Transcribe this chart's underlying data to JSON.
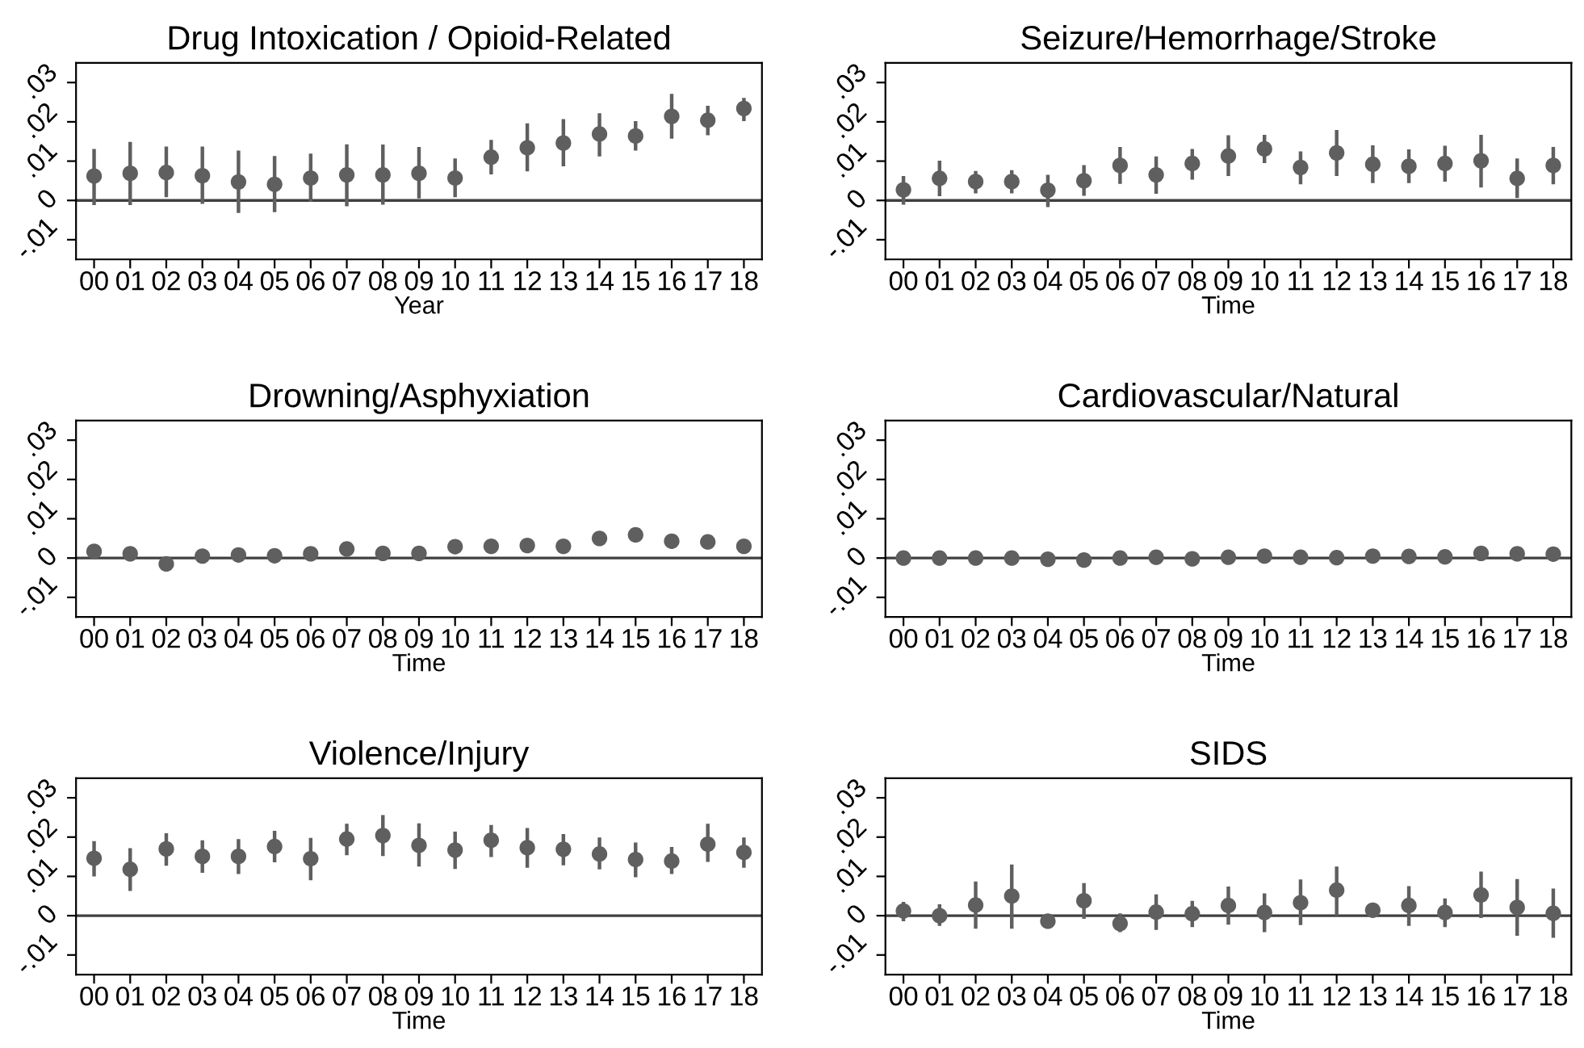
{
  "chart_data": [
    {
      "type": "scatter",
      "title": "Drug Intoxication / Opioid-Related",
      "xlabel": "Year",
      "categories": [
        "00",
        "01",
        "02",
        "03",
        "04",
        "05",
        "06",
        "07",
        "08",
        "09",
        "10",
        "11",
        "12",
        "13",
        "14",
        "15",
        "16",
        "17",
        "18"
      ],
      "series": [
        {
          "color": "#5f5f5f",
          "values": [
            0.0062,
            0.0069,
            0.0071,
            0.0063,
            0.0047,
            0.0041,
            0.0057,
            0.0065,
            0.0065,
            0.0069,
            0.0057,
            0.011,
            0.0134,
            0.0146,
            0.0169,
            0.0164,
            0.0214,
            0.0204,
            0.0234
          ],
          "errors": [
            [
              -0.0012,
              0.0131
            ],
            [
              -0.0012,
              0.0149
            ],
            [
              0.0008,
              0.0137
            ],
            [
              -0.0009,
              0.0137
            ],
            [
              -0.0032,
              0.0127
            ],
            [
              -0.003,
              0.0113
            ],
            [
              -0.0003,
              0.0119
            ],
            [
              -0.0015,
              0.0143
            ],
            [
              -0.0011,
              0.0142
            ],
            [
              0.0005,
              0.0136
            ],
            [
              0.0008,
              0.0107
            ],
            [
              0.0066,
              0.0154
            ],
            [
              0.0074,
              0.0196
            ],
            [
              0.0087,
              0.0207
            ],
            [
              0.0112,
              0.0222
            ],
            [
              0.0127,
              0.0202
            ],
            [
              0.0157,
              0.0271
            ],
            [
              0.0166,
              0.0241
            ],
            [
              0.0202,
              0.0261
            ]
          ]
        }
      ],
      "ylim": [
        -0.015,
        0.035
      ],
      "yticks": [
        {
          "value": -0.01,
          "label": "-.01"
        },
        0,
        {
          "value": 0.01,
          "label": ".01"
        },
        {
          "value": 0.02,
          "label": ".02"
        },
        {
          "value": 0.03,
          "label": ".03"
        }
      ],
      "ref_lines": [
        {
          "axis": "y",
          "value": 0,
          "color": "#404040"
        }
      ],
      "marker": "circle",
      "grid": false,
      "legend": false
    },
    {
      "type": "scatter",
      "title": "Seizure/Hemorrhage/Stroke",
      "xlabel": "Time",
      "categories": [
        "00",
        "01",
        "02",
        "03",
        "04",
        "05",
        "06",
        "07",
        "08",
        "09",
        "10",
        "11",
        "12",
        "13",
        "14",
        "15",
        "16",
        "17",
        "18"
      ],
      "series": [
        {
          "color": "#5f5f5f",
          "values": [
            0.0027,
            0.0056,
            0.0048,
            0.0048,
            0.0026,
            0.005,
            0.0089,
            0.0065,
            0.0094,
            0.0113,
            0.0131,
            0.0084,
            0.0121,
            0.0092,
            0.0087,
            0.0094,
            0.0101,
            0.0056,
            0.0089
          ],
          "errors": [
            [
              -0.0011,
              0.0062
            ],
            [
              0.0011,
              0.0101
            ],
            [
              0.0018,
              0.0075
            ],
            [
              0.0018,
              0.0077
            ],
            [
              -0.0017,
              0.0065
            ],
            [
              0.0012,
              0.009
            ],
            [
              0.0042,
              0.0136
            ],
            [
              0.0017,
              0.0112
            ],
            [
              0.0053,
              0.0131
            ],
            [
              0.0062,
              0.0166
            ],
            [
              0.0095,
              0.0167
            ],
            [
              0.0041,
              0.0125
            ],
            [
              0.0062,
              0.0179
            ],
            [
              0.0044,
              0.014
            ],
            [
              0.0044,
              0.013
            ],
            [
              0.0048,
              0.0139
            ],
            [
              0.0033,
              0.0167
            ],
            [
              0.0006,
              0.0107
            ],
            [
              0.0041,
              0.0136
            ]
          ]
        }
      ],
      "ylim": [
        -0.015,
        0.035
      ],
      "yticks": [
        {
          "value": -0.01,
          "label": "-.01"
        },
        0,
        {
          "value": 0.01,
          "label": ".01"
        },
        {
          "value": 0.02,
          "label": ".02"
        },
        {
          "value": 0.03,
          "label": ".03"
        }
      ],
      "ref_lines": [
        {
          "axis": "y",
          "value": 0,
          "color": "#404040"
        }
      ],
      "marker": "circle",
      "grid": false,
      "legend": false
    },
    {
      "type": "scatter",
      "title": "Drowning/Asphyxiation",
      "xlabel": "Time",
      "categories": [
        "00",
        "01",
        "02",
        "03",
        "04",
        "05",
        "06",
        "07",
        "08",
        "09",
        "10",
        "11",
        "12",
        "13",
        "14",
        "15",
        "16",
        "17",
        "18"
      ],
      "series": [
        {
          "color": "#5f5f5f",
          "values": [
            0.0017,
            0.0011,
            -0.0015,
            0.0005,
            0.0008,
            0.0006,
            0.0011,
            0.0023,
            0.0012,
            0.0012,
            0.0029,
            0.003,
            0.0032,
            0.003,
            0.005,
            0.0059,
            0.0043,
            0.0041,
            0.003
          ],
          "errors": [
            0.0008,
            0.0008,
            0.0008,
            0.0008,
            0.0008,
            0.0008,
            0.0008,
            0.0008,
            0.0008,
            0.0015,
            0.0008,
            0.0008,
            0.0015,
            0.001,
            0.0015,
            0.001,
            0.0012,
            0.0015,
            0.0012
          ]
        }
      ],
      "ylim": [
        -0.015,
        0.035
      ],
      "yticks": [
        {
          "value": -0.01,
          "label": "-.01"
        },
        0,
        {
          "value": 0.01,
          "label": ".01"
        },
        {
          "value": 0.02,
          "label": ".02"
        },
        {
          "value": 0.03,
          "label": ".03"
        }
      ],
      "ref_lines": [
        {
          "axis": "y",
          "value": 0,
          "color": "#404040"
        }
      ],
      "marker": "circle",
      "grid": false,
      "legend": false
    },
    {
      "type": "scatter",
      "title": "Cardiovascular/Natural",
      "xlabel": "Time",
      "categories": [
        "00",
        "01",
        "02",
        "03",
        "04",
        "05",
        "06",
        "07",
        "08",
        "09",
        "10",
        "11",
        "12",
        "13",
        "14",
        "15",
        "16",
        "17",
        "18"
      ],
      "series": [
        {
          "color": "#5f5f5f",
          "values": [
            0.0,
            0.0,
            0.0,
            0.0,
            -0.0003,
            -0.0005,
            0.0,
            0.0002,
            -0.0002,
            0.0002,
            0.0005,
            0.0002,
            0.0001,
            0.0005,
            0.0004,
            0.0003,
            0.0012,
            0.0011,
            0.001
          ],
          "errors": [
            0.0004,
            0.0004,
            0.0004,
            0.0004,
            0.0004,
            0.0004,
            0.0004,
            0.0004,
            0.0004,
            0.0004,
            0.0004,
            0.0004,
            0.0004,
            0.0004,
            0.0004,
            0.0004,
            0.0004,
            0.0004,
            0.0004
          ]
        }
      ],
      "ylim": [
        -0.015,
        0.035
      ],
      "yticks": [
        {
          "value": -0.01,
          "label": "-.01"
        },
        0,
        {
          "value": 0.01,
          "label": ".01"
        },
        {
          "value": 0.02,
          "label": ".02"
        },
        {
          "value": 0.03,
          "label": ".03"
        }
      ],
      "ref_lines": [
        {
          "axis": "y",
          "value": 0,
          "color": "#404040"
        }
      ],
      "marker": "circle",
      "grid": false,
      "legend": false
    },
    {
      "type": "scatter",
      "title": "Violence/Injury",
      "xlabel": "Time",
      "categories": [
        "00",
        "01",
        "02",
        "03",
        "04",
        "05",
        "06",
        "07",
        "08",
        "09",
        "10",
        "11",
        "12",
        "13",
        "14",
        "15",
        "16",
        "17",
        "18"
      ],
      "series": [
        {
          "color": "#5f5f5f",
          "values": [
            0.0146,
            0.0118,
            0.017,
            0.0151,
            0.0151,
            0.0176,
            0.0145,
            0.0195,
            0.0204,
            0.0179,
            0.0167,
            0.0192,
            0.0173,
            0.0169,
            0.0157,
            0.0143,
            0.0139,
            0.0182,
            0.0161
          ],
          "errors": [
            [
              0.01,
              0.019
            ],
            [
              0.0063,
              0.0172
            ],
            [
              0.0127,
              0.021
            ],
            [
              0.0109,
              0.0192
            ],
            [
              0.0106,
              0.0195
            ],
            [
              0.0136,
              0.0216
            ],
            [
              0.009,
              0.0198
            ],
            [
              0.0154,
              0.0234
            ],
            [
              0.0152,
              0.0256
            ],
            [
              0.0125,
              0.0235
            ],
            [
              0.0119,
              0.0214
            ],
            [
              0.0149,
              0.0231
            ],
            [
              0.0122,
              0.0223
            ],
            [
              0.0128,
              0.0208
            ],
            [
              0.0118,
              0.0199
            ],
            [
              0.0098,
              0.0186
            ],
            [
              0.0106,
              0.0175
            ],
            [
              0.0137,
              0.0234
            ],
            [
              0.0122,
              0.0199
            ]
          ]
        }
      ],
      "ylim": [
        -0.015,
        0.035
      ],
      "yticks": [
        {
          "value": -0.01,
          "label": "-.01"
        },
        0,
        {
          "value": 0.01,
          "label": ".01"
        },
        {
          "value": 0.02,
          "label": ".02"
        },
        {
          "value": 0.03,
          "label": ".03"
        }
      ],
      "ref_lines": [
        {
          "axis": "y",
          "value": 0,
          "color": "#404040"
        }
      ],
      "marker": "circle",
      "grid": false,
      "legend": false
    },
    {
      "type": "scatter",
      "title": "SIDS",
      "xlabel": "Time",
      "categories": [
        "00",
        "01",
        "02",
        "03",
        "04",
        "05",
        "06",
        "07",
        "08",
        "09",
        "10",
        "11",
        "12",
        "13",
        "14",
        "15",
        "16",
        "17",
        "18"
      ],
      "series": [
        {
          "color": "#5f5f5f",
          "values": [
            0.0012,
            0.0,
            0.0027,
            0.005,
            -0.0014,
            0.0038,
            -0.002,
            0.0009,
            0.0005,
            0.0026,
            0.0008,
            0.0033,
            0.0065,
            0.0014,
            0.0026,
            0.0008,
            0.0053,
            0.0021,
            0.0006
          ],
          "errors": [
            [
              -0.0014,
              0.0035
            ],
            [
              -0.0026,
              0.0029
            ],
            [
              -0.0033,
              0.0087
            ],
            [
              -0.0033,
              0.013
            ],
            [
              -0.0023,
              -0.0004
            ],
            [
              -0.0008,
              0.0083
            ],
            [
              -0.0042,
              0.0006
            ],
            [
              -0.0036,
              0.0054
            ],
            [
              -0.0029,
              0.0038
            ],
            [
              -0.0023,
              0.0074
            ],
            [
              -0.0042,
              0.0057
            ],
            [
              -0.0024,
              0.0092
            ],
            [
              0.0,
              0.0125
            ],
            [
              -0.0005,
              0.0033
            ],
            [
              -0.0026,
              0.0075
            ],
            [
              -0.0029,
              0.0044
            ],
            [
              -0.0006,
              0.0112
            ],
            [
              -0.0051,
              0.0093
            ],
            [
              -0.0056,
              0.0069
            ]
          ]
        }
      ],
      "ylim": [
        -0.015,
        0.035
      ],
      "yticks": [
        {
          "value": -0.01,
          "label": "-.01"
        },
        0,
        {
          "value": 0.01,
          "label": ".01"
        },
        {
          "value": 0.02,
          "label": ".02"
        },
        {
          "value": 0.03,
          "label": ".03"
        }
      ],
      "ref_lines": [
        {
          "axis": "y",
          "value": 0,
          "color": "#404040"
        }
      ],
      "marker": "circle",
      "grid": false,
      "legend": false
    }
  ]
}
